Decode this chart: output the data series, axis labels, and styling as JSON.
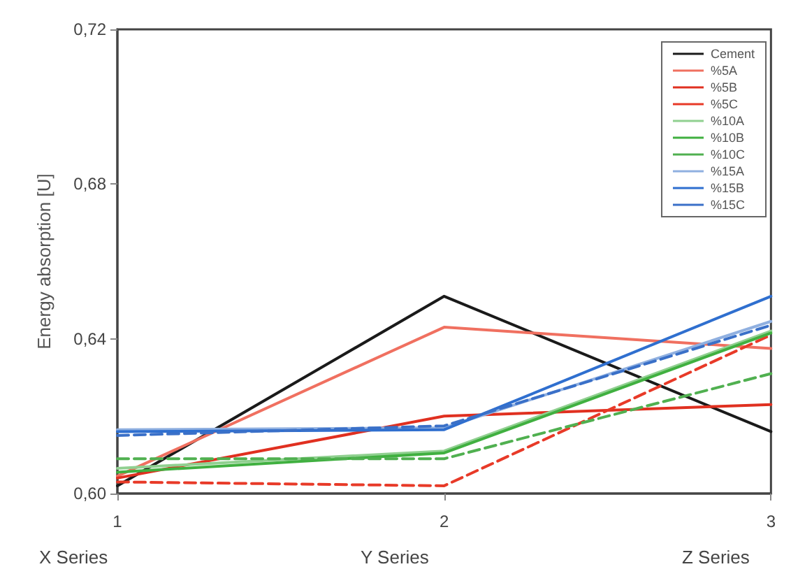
{
  "chart_data": {
    "type": "line",
    "ylabel": "Energy absorption [U]",
    "x": [
      1,
      2,
      3
    ],
    "xlim": [
      1,
      3
    ],
    "xticks": [
      1,
      2,
      3
    ],
    "ylim": [
      0.6,
      0.72
    ],
    "yticks": [
      {
        "value": 0.6,
        "label": "0,60"
      },
      {
        "value": 0.64,
        "label": "0,64"
      },
      {
        "value": 0.68,
        "label": "0,68"
      },
      {
        "value": 0.72,
        "label": "0,72"
      }
    ],
    "grid": false,
    "legend": "top right",
    "marker": "none",
    "annotations": [
      "X Series",
      "Y Series",
      "Z Series"
    ],
    "series": [
      {
        "name": "Cement",
        "color": "#1a1a1a",
        "values": [
          0.602,
          0.651,
          0.616
        ]
      },
      {
        "name": "%5A",
        "color": "#f07060",
        "values": [
          0.6045,
          0.643,
          0.6375
        ]
      },
      {
        "name": "%5B",
        "color": "#e03020",
        "values": [
          0.604,
          0.62,
          0.623
        ]
      },
      {
        "name": "%5C",
        "color": "#e83a28",
        "line_style": "dashed",
        "values": [
          0.603,
          0.602,
          0.641
        ]
      },
      {
        "name": "%10A",
        "color": "#90d090",
        "values": [
          0.6065,
          0.611,
          0.642
        ]
      },
      {
        "name": "%10B",
        "color": "#40b040",
        "values": [
          0.6055,
          0.6105,
          0.6415
        ]
      },
      {
        "name": "%10C",
        "color": "#50b050",
        "line_style": "dashed",
        "values": [
          0.609,
          0.609,
          0.631
        ]
      },
      {
        "name": "%15A",
        "color": "#90b0e0",
        "values": [
          0.6165,
          0.617,
          0.6445
        ]
      },
      {
        "name": "%15B",
        "color": "#2f6fcf",
        "values": [
          0.616,
          0.6165,
          0.651
        ]
      },
      {
        "name": "%15C",
        "color": "#3a70c8",
        "line_style": "dashed",
        "values": [
          0.615,
          0.6175,
          0.6435
        ]
      }
    ]
  }
}
